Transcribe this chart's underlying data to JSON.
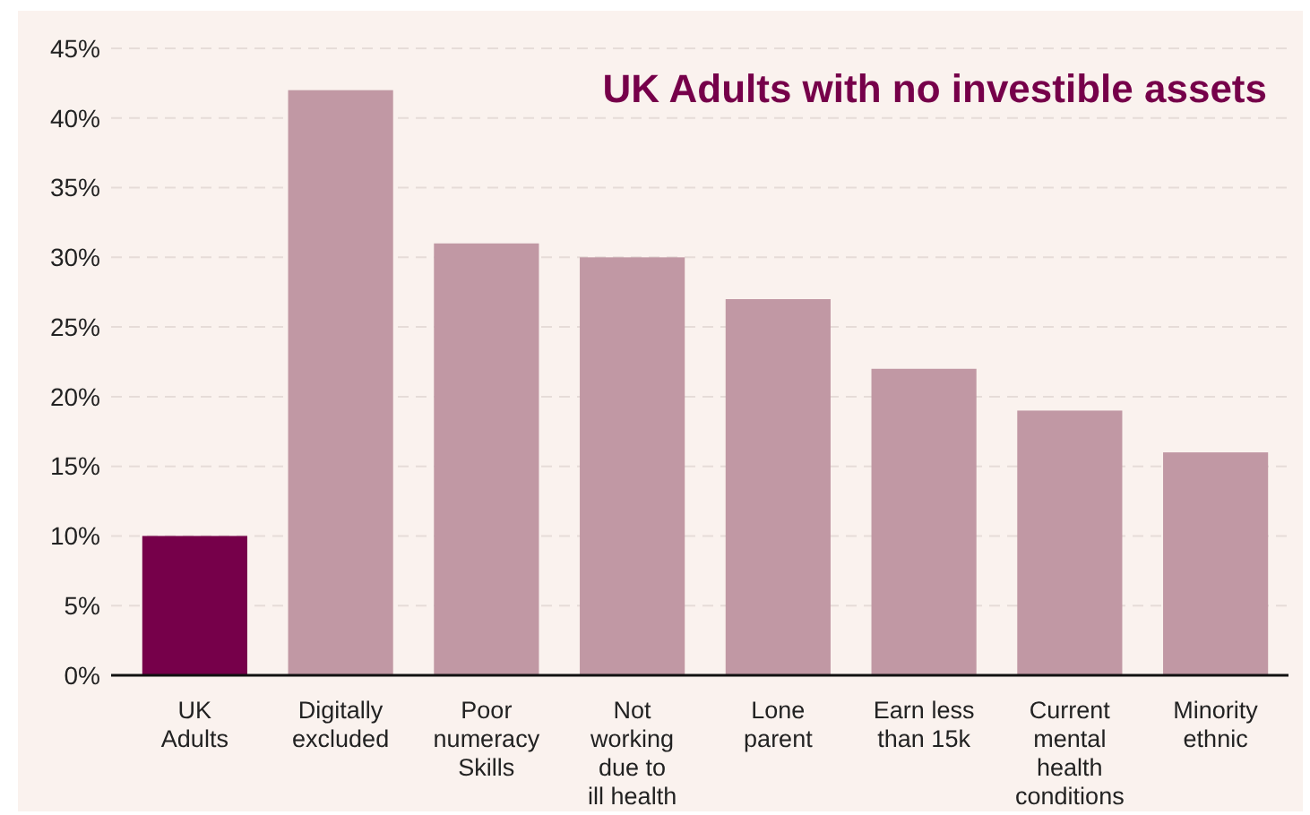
{
  "chart_data": {
    "type": "bar",
    "title": "UK Adults with no investible assets",
    "categories": [
      "UK\nAdults",
      "Digitally\nexcluded",
      "Poor\nnumeracy\nSkills",
      "Not\nworking\ndue to\nill health",
      "Lone\nparent",
      "Earn less\nthan 15k",
      "Current\nmental\nhealth\nconditions",
      "Minority\nethnic"
    ],
    "values": [
      10,
      42,
      31,
      30,
      27,
      22,
      19,
      16
    ],
    "colors": [
      "#76004a",
      "#c198a4",
      "#c198a4",
      "#c198a4",
      "#c198a4",
      "#c198a4",
      "#c198a4",
      "#c198a4"
    ],
    "ylim": [
      0,
      45
    ],
    "yticks": [
      {
        "value": 0,
        "label": "0%"
      },
      {
        "value": 5,
        "label": "5%"
      },
      {
        "value": 10,
        "label": "10%"
      },
      {
        "value": 15,
        "label": "15%"
      },
      {
        "value": 20,
        "label": "20%"
      },
      {
        "value": 25,
        "label": "25%"
      },
      {
        "value": 30,
        "label": "30%"
      },
      {
        "value": 35,
        "label": "35%"
      },
      {
        "value": 40,
        "label": "40%"
      },
      {
        "value": 45,
        "label": "45%"
      }
    ],
    "grid": "y"
  }
}
